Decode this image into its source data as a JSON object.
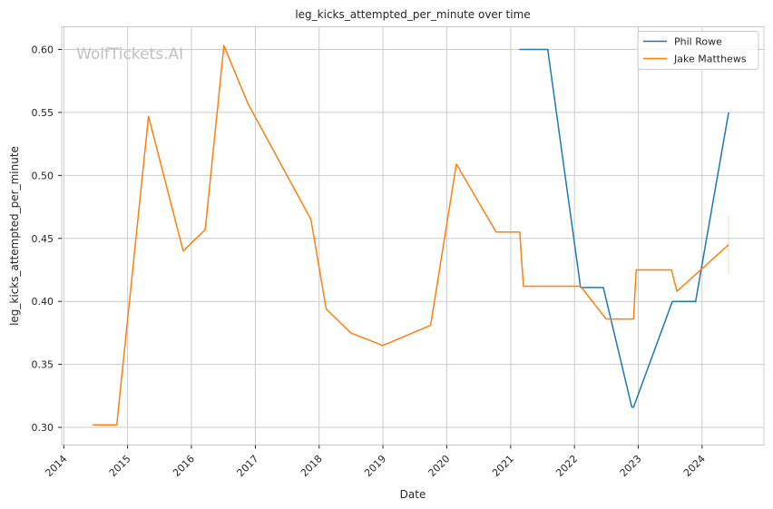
{
  "chart_data": {
    "type": "line",
    "title": "leg_kicks_attempted_per_minute over time",
    "xlabel": "Date",
    "ylabel": "leg_kicks_attempted_per_minute",
    "watermark": "WolfTickets.AI",
    "xlim": [
      "2013-12-20",
      "2024-12-20"
    ],
    "ylim": [
      0.286,
      0.618
    ],
    "x_ticks": [
      "2014",
      "2015",
      "2016",
      "2017",
      "2018",
      "2019",
      "2020",
      "2021",
      "2022",
      "2023",
      "2024"
    ],
    "y_ticks": [
      "0.30",
      "0.35",
      "0.40",
      "0.45",
      "0.50",
      "0.55",
      "0.60"
    ],
    "grid": true,
    "legend_position": "top-right",
    "series": [
      {
        "name": "Phil Rowe",
        "color": "#1f77b4",
        "points": [
          {
            "x": "2021-02-20",
            "y": 0.6
          },
          {
            "x": "2021-08-01",
            "y": 0.6
          },
          {
            "x": "2022-02-05",
            "y": 0.411
          },
          {
            "x": "2022-06-15",
            "y": 0.411
          },
          {
            "x": "2022-11-25",
            "y": 0.316
          },
          {
            "x": "2022-12-05",
            "y": 0.316
          },
          {
            "x": "2023-07-15",
            "y": 0.4
          },
          {
            "x": "2023-11-25",
            "y": 0.4
          },
          {
            "x": "2024-06-01",
            "y": 0.55
          }
        ]
      },
      {
        "name": "Jake Matthews",
        "color": "#ff7f0e",
        "points": [
          {
            "x": "2014-06-15",
            "y": 0.302
          },
          {
            "x": "2014-10-31",
            "y": 0.302
          },
          {
            "x": "2015-05-01",
            "y": 0.547
          },
          {
            "x": "2015-11-15",
            "y": 0.44
          },
          {
            "x": "2016-03-20",
            "y": 0.457
          },
          {
            "x": "2016-07-05",
            "y": 0.603
          },
          {
            "x": "2016-11-20",
            "y": 0.557
          },
          {
            "x": "2017-11-15",
            "y": 0.465
          },
          {
            "x": "2018-02-10",
            "y": 0.394
          },
          {
            "x": "2018-07-01",
            "y": 0.375
          },
          {
            "x": "2018-12-31",
            "y": 0.365
          },
          {
            "x": "2019-10-01",
            "y": 0.381
          },
          {
            "x": "2020-02-25",
            "y": 0.509
          },
          {
            "x": "2020-10-10",
            "y": 0.455
          },
          {
            "x": "2021-02-22",
            "y": 0.455
          },
          {
            "x": "2021-03-15",
            "y": 0.412
          },
          {
            "x": "2022-02-05",
            "y": 0.412
          },
          {
            "x": "2022-07-01",
            "y": 0.386
          },
          {
            "x": "2022-12-05",
            "y": 0.386
          },
          {
            "x": "2022-12-20",
            "y": 0.425
          },
          {
            "x": "2023-07-10",
            "y": 0.425
          },
          {
            "x": "2023-08-10",
            "y": 0.408
          },
          {
            "x": "2024-06-01",
            "y": 0.445
          }
        ],
        "error_bar": {
          "x": "2024-06-01",
          "low": 0.422,
          "high": 0.468
        }
      }
    ]
  }
}
